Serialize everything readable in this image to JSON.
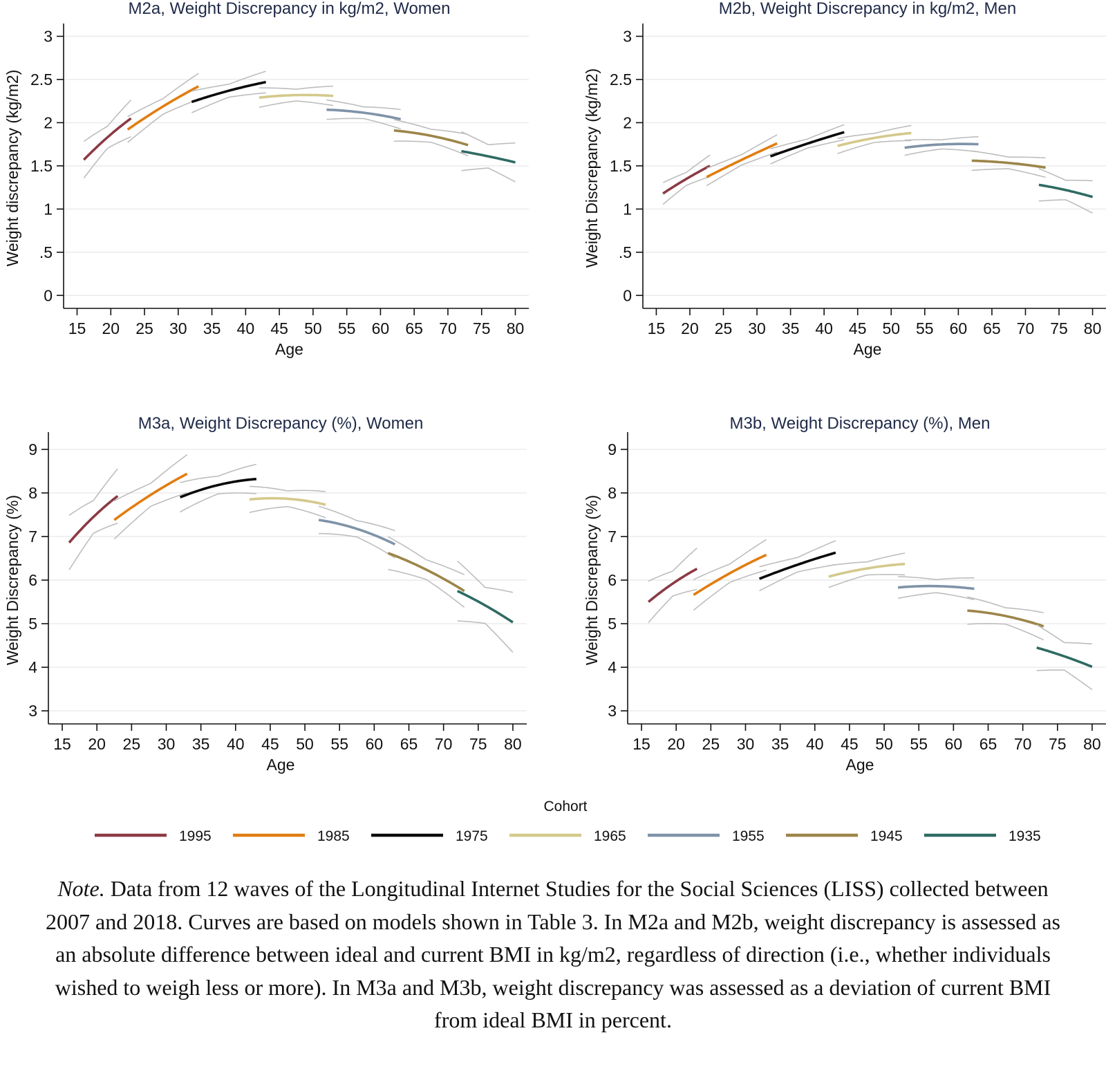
{
  "colors": {
    "1995": "#8b3a44",
    "1985": "#e07d10",
    "1975": "#0a0a0a",
    "1965": "#d3c98c",
    "1955": "#7f93a8",
    "1945": "#9c8549",
    "1935": "#2f6b62",
    "ci": "#bdbdbd"
  },
  "legend": {
    "title": "Cohort",
    "items": [
      "1995",
      "1985",
      "1975",
      "1965",
      "1955",
      "1945",
      "1935"
    ]
  },
  "note": {
    "lead": "Note.",
    "text": " Data from 12 waves of the Longitudinal Internet Studies for the Social Sciences (LISS) collected between 2007 and 2018. Curves are based on models shown in Table 3. In M2a and M2b, weight discrepancy is assessed as an absolute difference between ideal and current BMI in kg/m2, regardless of direction (i.e., whether individuals wished to weigh less or more). In M3a and M3b, weight discrepancy was assessed as a deviation of current BMI from ideal BMI in percent."
  },
  "chart_data": [
    {
      "id": "m2a",
      "type": "line",
      "title": "M2a, Weight Discrepancy in kg/m2, Women",
      "xlabel": "Age",
      "ylabel": "Weight discrepancy (kg/m2)",
      "xlim": [
        13,
        82
      ],
      "ylim": [
        -0.15,
        3.1
      ],
      "xticks": [
        15,
        20,
        25,
        30,
        35,
        40,
        45,
        50,
        55,
        60,
        65,
        70,
        75,
        80
      ],
      "xtick_labels": [
        "15",
        "20",
        "25",
        "30",
        "35",
        "40",
        "45",
        "50",
        "55",
        "60",
        "65",
        "70",
        "75",
        "80"
      ],
      "yticks": [
        0,
        0.5,
        1,
        1.5,
        2,
        2.5,
        3
      ],
      "ytick_labels": [
        "0",
        ".5",
        "1",
        "1.5",
        "2",
        "2.5",
        "3"
      ],
      "series": [
        {
          "name": "1995",
          "x": [
            16,
            19.5,
            23
          ],
          "y": [
            1.57,
            1.83,
            2.05
          ],
          "ci_width": 0.17
        },
        {
          "name": "1985",
          "x": [
            22.5,
            28,
            33
          ],
          "y": [
            1.92,
            2.2,
            2.42
          ],
          "ci_width": 0.12
        },
        {
          "name": "1975",
          "x": [
            32,
            38,
            43
          ],
          "y": [
            2.24,
            2.38,
            2.47
          ],
          "ci_width": 0.1
        },
        {
          "name": "1965",
          "x": [
            42,
            48,
            53
          ],
          "y": [
            2.29,
            2.32,
            2.31
          ],
          "ci_width": 0.09
        },
        {
          "name": "1955",
          "x": [
            52,
            58,
            63
          ],
          "y": [
            2.15,
            2.11,
            2.04
          ],
          "ci_width": 0.09
        },
        {
          "name": "1945",
          "x": [
            62,
            68,
            73
          ],
          "y": [
            1.91,
            1.84,
            1.74
          ],
          "ci_width": 0.1
        },
        {
          "name": "1935",
          "x": [
            72,
            76,
            80
          ],
          "y": [
            1.67,
            1.61,
            1.54
          ],
          "ci_width": 0.18
        }
      ]
    },
    {
      "id": "m2b",
      "type": "line",
      "title": "M2b, Weight Discrepancy in kg/m2, Men",
      "xlabel": "Age",
      "ylabel": "Weight Discrepancy (kg/m2)",
      "xlim": [
        13,
        82
      ],
      "ylim": [
        -0.15,
        3.1
      ],
      "xticks": [
        15,
        20,
        25,
        30,
        35,
        40,
        45,
        50,
        55,
        60,
        65,
        70,
        75,
        80
      ],
      "xtick_labels": [
        "15",
        "20",
        "25",
        "30",
        "35",
        "40",
        "45",
        "50",
        "55",
        "60",
        "65",
        "70",
        "75",
        "80"
      ],
      "yticks": [
        0,
        0.5,
        1,
        1.5,
        2,
        2.5,
        3
      ],
      "ytick_labels": [
        "0",
        ".5",
        "1",
        "1.5",
        "2",
        "2.5",
        "3"
      ],
      "series": [
        {
          "name": "1995",
          "x": [
            16,
            19.5,
            23
          ],
          "y": [
            1.18,
            1.35,
            1.5
          ],
          "ci_width": 0.1
        },
        {
          "name": "1985",
          "x": [
            22.5,
            28,
            33
          ],
          "y": [
            1.37,
            1.58,
            1.76
          ],
          "ci_width": 0.08
        },
        {
          "name": "1975",
          "x": [
            32,
            38,
            43
          ],
          "y": [
            1.61,
            1.77,
            1.89
          ],
          "ci_width": 0.07
        },
        {
          "name": "1965",
          "x": [
            42,
            48,
            53
          ],
          "y": [
            1.73,
            1.83,
            1.88
          ],
          "ci_width": 0.07
        },
        {
          "name": "1955",
          "x": [
            52,
            58,
            63
          ],
          "y": [
            1.71,
            1.75,
            1.75
          ],
          "ci_width": 0.07
        },
        {
          "name": "1945",
          "x": [
            62,
            68,
            73
          ],
          "y": [
            1.56,
            1.53,
            1.48
          ],
          "ci_width": 0.09
        },
        {
          "name": "1935",
          "x": [
            72,
            76,
            80
          ],
          "y": [
            1.28,
            1.22,
            1.14
          ],
          "ci_width": 0.15
        }
      ]
    },
    {
      "id": "m3a",
      "type": "line",
      "title": "M3a, Weight Discrepancy (%), Women",
      "xlabel": "Age",
      "ylabel": "Weight Discrepancy (%)",
      "xlim": [
        13,
        82
      ],
      "ylim": [
        2.7,
        9.3
      ],
      "xticks": [
        15,
        20,
        25,
        30,
        35,
        40,
        45,
        50,
        55,
        60,
        65,
        70,
        75,
        80
      ],
      "xtick_labels": [
        "15",
        "20",
        "25",
        "30",
        "35",
        "40",
        "45",
        "50",
        "55",
        "60",
        "65",
        "70",
        "75",
        "80"
      ],
      "yticks": [
        3,
        4,
        5,
        6,
        7,
        8,
        9
      ],
      "ytick_labels": [
        "3",
        "4",
        "5",
        "6",
        "7",
        "8",
        "9"
      ],
      "series": [
        {
          "name": "1995",
          "x": [
            16,
            19.5,
            23
          ],
          "y": [
            6.86,
            7.45,
            7.93
          ],
          "ci_width": 0.5
        },
        {
          "name": "1985",
          "x": [
            22.5,
            28,
            33
          ],
          "y": [
            7.38,
            7.98,
            8.44
          ],
          "ci_width": 0.35
        },
        {
          "name": "1975",
          "x": [
            32,
            38,
            43
          ],
          "y": [
            7.9,
            8.2,
            8.32
          ],
          "ci_width": 0.27
        },
        {
          "name": "1965",
          "x": [
            42,
            48,
            53
          ],
          "y": [
            7.85,
            7.86,
            7.73
          ],
          "ci_width": 0.24
        },
        {
          "name": "1955",
          "x": [
            52,
            58,
            63
          ],
          "y": [
            7.38,
            7.15,
            6.82
          ],
          "ci_width": 0.25
        },
        {
          "name": "1945",
          "x": [
            62,
            68,
            73
          ],
          "y": [
            6.62,
            6.2,
            5.75
          ],
          "ci_width": 0.3
        },
        {
          "name": "1935",
          "x": [
            72,
            76,
            80
          ],
          "y": [
            5.75,
            5.42,
            5.03
          ],
          "ci_width": 0.55
        }
      ]
    },
    {
      "id": "m3b",
      "type": "line",
      "title": "M3b, Weight Discrepancy (%), Men",
      "xlabel": "Age",
      "ylabel": "Weight Discrepancy (%)",
      "xlim": [
        13,
        82
      ],
      "ylim": [
        2.7,
        9.3
      ],
      "xticks": [
        15,
        20,
        25,
        30,
        35,
        40,
        45,
        50,
        55,
        60,
        65,
        70,
        75,
        80
      ],
      "xtick_labels": [
        "15",
        "20",
        "25",
        "30",
        "35",
        "40",
        "45",
        "50",
        "55",
        "60",
        "65",
        "70",
        "75",
        "80"
      ],
      "yticks": [
        3,
        4,
        5,
        6,
        7,
        8,
        9
      ],
      "ytick_labels": [
        "3",
        "4",
        "5",
        "6",
        "7",
        "8",
        "9"
      ],
      "series": [
        {
          "name": "1995",
          "x": [
            16,
            19.5,
            23
          ],
          "y": [
            5.5,
            5.92,
            6.26
          ],
          "ci_width": 0.38
        },
        {
          "name": "1985",
          "x": [
            22.5,
            28,
            33
          ],
          "y": [
            5.66,
            6.18,
            6.58
          ],
          "ci_width": 0.28
        },
        {
          "name": "1975",
          "x": [
            32,
            38,
            43
          ],
          "y": [
            6.03,
            6.38,
            6.63
          ],
          "ci_width": 0.22
        },
        {
          "name": "1965",
          "x": [
            42,
            48,
            53
          ],
          "y": [
            6.08,
            6.28,
            6.37
          ],
          "ci_width": 0.2
        },
        {
          "name": "1955",
          "x": [
            52,
            58,
            63
          ],
          "y": [
            5.83,
            5.86,
            5.8
          ],
          "ci_width": 0.2
        },
        {
          "name": "1945",
          "x": [
            62,
            68,
            73
          ],
          "y": [
            5.3,
            5.16,
            4.94
          ],
          "ci_width": 0.25
        },
        {
          "name": "1935",
          "x": [
            72,
            76,
            80
          ],
          "y": [
            4.45,
            4.25,
            4.01
          ],
          "ci_width": 0.42
        }
      ]
    }
  ]
}
